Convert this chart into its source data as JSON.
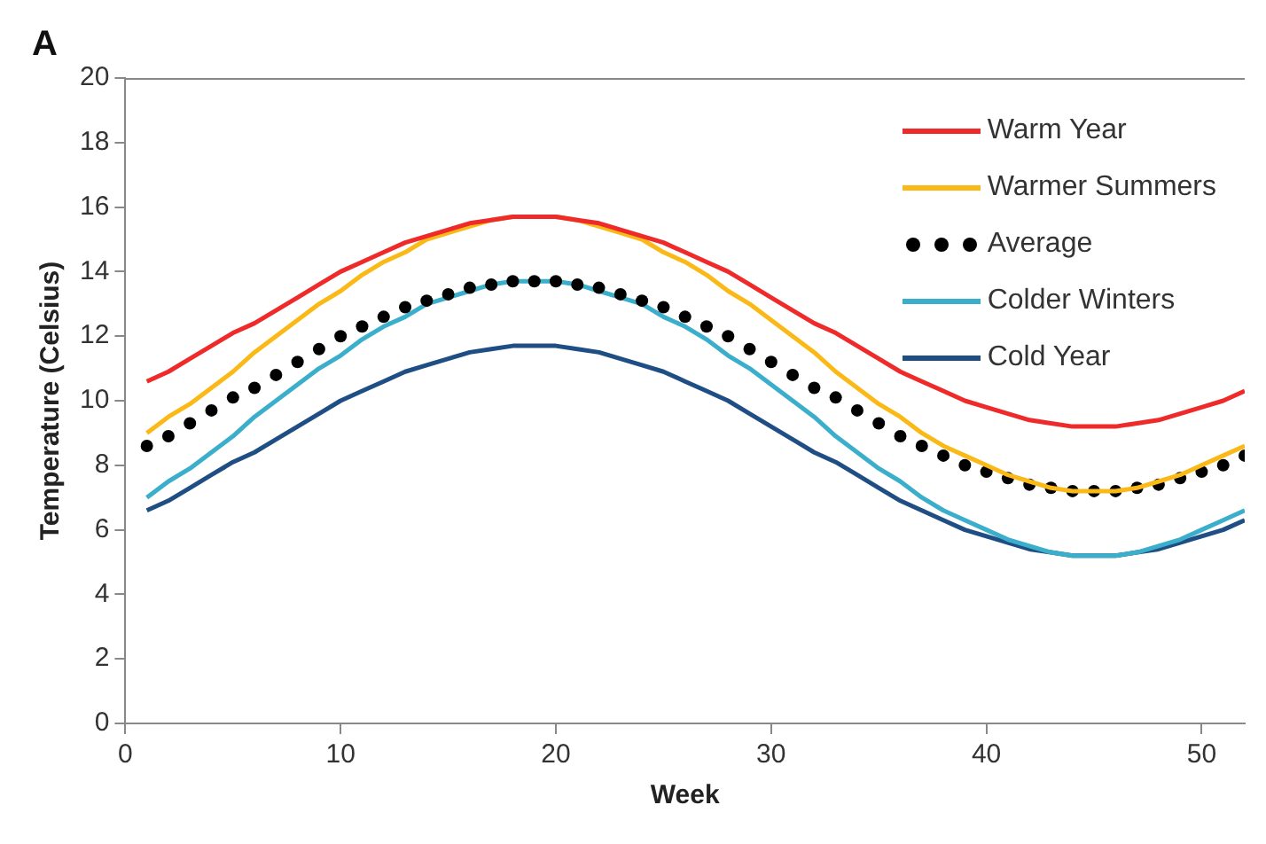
{
  "chart_data": {
    "type": "line",
    "title": "A",
    "xlabel": "Week",
    "ylabel": "Temperature (Celsius)",
    "x": [
      1,
      2,
      3,
      4,
      5,
      6,
      7,
      8,
      9,
      10,
      11,
      12,
      13,
      14,
      15,
      16,
      17,
      18,
      19,
      20,
      21,
      22,
      23,
      24,
      25,
      26,
      27,
      28,
      29,
      30,
      31,
      32,
      33,
      34,
      35,
      36,
      37,
      38,
      39,
      40,
      41,
      42,
      43,
      44,
      45,
      46,
      47,
      48,
      49,
      50,
      51,
      52
    ],
    "xlim": [
      0,
      52
    ],
    "xticks": [
      0,
      10,
      20,
      30,
      40,
      50
    ],
    "ylim": [
      0,
      20
    ],
    "yticks": [
      0,
      2,
      4,
      6,
      8,
      10,
      12,
      14,
      16,
      18,
      20
    ],
    "grid": false,
    "legend": "top right",
    "line_style": "solid",
    "series": [
      {
        "name": "Warm Year",
        "color": "#ee2a2a",
        "values": [
          10.6,
          10.9,
          11.3,
          11.7,
          12.1,
          12.4,
          12.8,
          13.2,
          13.6,
          14.0,
          14.3,
          14.6,
          14.9,
          15.1,
          15.3,
          15.5,
          15.6,
          15.7,
          15.7,
          15.7,
          15.6,
          15.5,
          15.3,
          15.1,
          14.9,
          14.6,
          14.3,
          14.0,
          13.6,
          13.2,
          12.8,
          12.4,
          12.1,
          11.7,
          11.3,
          10.9,
          10.6,
          10.3,
          10.0,
          9.8,
          9.6,
          9.4,
          9.3,
          9.2,
          9.2,
          9.2,
          9.3,
          9.4,
          9.6,
          9.8,
          10.0,
          10.3
        ]
      },
      {
        "name": "Warmer Summers",
        "color": "#fbb917",
        "values": [
          9.0,
          9.5,
          9.9,
          10.4,
          10.9,
          11.5,
          12.0,
          12.5,
          13.0,
          13.4,
          13.9,
          14.3,
          14.6,
          15.0,
          15.2,
          15.4,
          15.6,
          15.7,
          15.7,
          15.7,
          15.6,
          15.4,
          15.2,
          15.0,
          14.6,
          14.3,
          13.9,
          13.4,
          13.0,
          12.5,
          12.0,
          11.5,
          10.9,
          10.4,
          9.9,
          9.5,
          9.0,
          8.6,
          8.3,
          8.0,
          7.7,
          7.5,
          7.3,
          7.2,
          7.2,
          7.2,
          7.3,
          7.5,
          7.7,
          8.0,
          8.3,
          8.6
        ]
      },
      {
        "name": "Average",
        "type": "scatter",
        "marker": "circle",
        "color": "#000000",
        "values": [
          8.6,
          8.9,
          9.3,
          9.7,
          10.1,
          10.4,
          10.8,
          11.2,
          11.6,
          12.0,
          12.3,
          12.6,
          12.9,
          13.1,
          13.3,
          13.5,
          13.6,
          13.7,
          13.7,
          13.7,
          13.6,
          13.5,
          13.3,
          13.1,
          12.9,
          12.6,
          12.3,
          12.0,
          11.6,
          11.2,
          10.8,
          10.4,
          10.1,
          9.7,
          9.3,
          8.9,
          8.6,
          8.3,
          8.0,
          7.8,
          7.6,
          7.4,
          7.3,
          7.2,
          7.2,
          7.2,
          7.3,
          7.4,
          7.6,
          7.8,
          8.0,
          8.3
        ]
      },
      {
        "name": "Colder Winters",
        "color": "#3aaecb",
        "values": [
          7.0,
          7.5,
          7.9,
          8.4,
          8.9,
          9.5,
          10.0,
          10.5,
          11.0,
          11.4,
          11.9,
          12.3,
          12.6,
          13.0,
          13.2,
          13.4,
          13.6,
          13.7,
          13.7,
          13.7,
          13.6,
          13.4,
          13.2,
          13.0,
          12.6,
          12.3,
          11.9,
          11.4,
          11.0,
          10.5,
          10.0,
          9.5,
          8.9,
          8.4,
          7.9,
          7.5,
          7.0,
          6.6,
          6.3,
          6.0,
          5.7,
          5.5,
          5.3,
          5.2,
          5.2,
          5.2,
          5.3,
          5.5,
          5.7,
          6.0,
          6.3,
          6.6
        ]
      },
      {
        "name": "Cold Year",
        "color": "#1f4e85",
        "values": [
          6.6,
          6.9,
          7.3,
          7.7,
          8.1,
          8.4,
          8.8,
          9.2,
          9.6,
          10.0,
          10.3,
          10.6,
          10.9,
          11.1,
          11.3,
          11.5,
          11.6,
          11.7,
          11.7,
          11.7,
          11.6,
          11.5,
          11.3,
          11.1,
          10.9,
          10.6,
          10.3,
          10.0,
          9.6,
          9.2,
          8.8,
          8.4,
          8.1,
          7.7,
          7.3,
          6.9,
          6.6,
          6.3,
          6.0,
          5.8,
          5.6,
          5.4,
          5.3,
          5.2,
          5.2,
          5.2,
          5.3,
          5.4,
          5.6,
          5.8,
          6.0,
          6.3
        ]
      }
    ]
  }
}
